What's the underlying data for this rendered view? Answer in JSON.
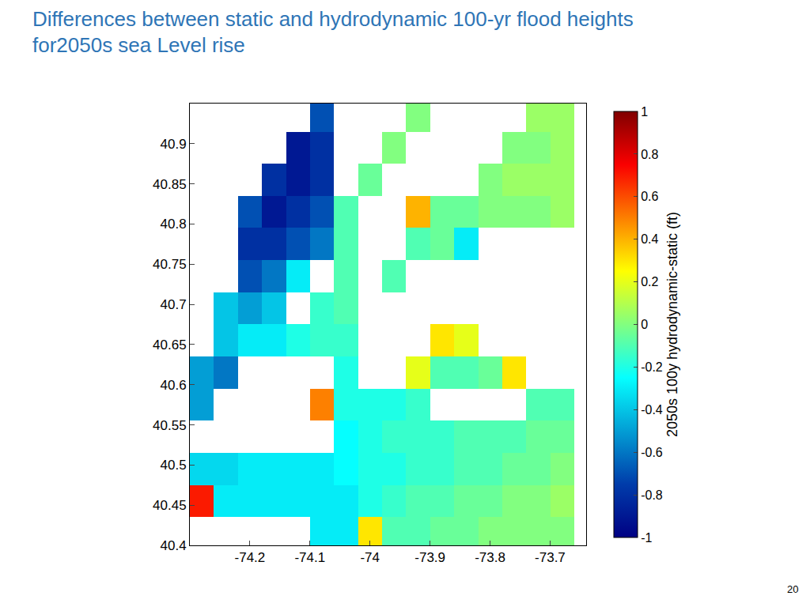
{
  "chart_data": {
    "type": "heatmap",
    "title": [
      "Differences between static and hydrodynamic 100-yr flood heights",
      "for2050s sea Level rise"
    ],
    "page": "20",
    "color": "Jet",
    "x": [
      -74.28,
      -74.24,
      -74.2,
      -74.16,
      -74.12,
      -74.08,
      -74.04,
      -74.0,
      -73.96,
      -73.92,
      -73.88,
      -73.84,
      -73.8,
      -73.76,
      -73.72,
      -73.68
    ],
    "y": [
      40.415,
      40.455,
      40.495,
      40.535,
      40.575,
      40.615,
      40.655,
      40.695,
      40.735,
      40.775,
      40.815,
      40.855,
      40.895,
      40.935
    ],
    "z": [
      [
        null,
        null,
        null,
        null,
        null,
        -0.3,
        -0.3,
        0.3,
        -0.1,
        -0.1,
        -0.05,
        -0.05,
        0,
        0,
        0,
        0
      ],
      [
        0.7,
        -0.3,
        -0.3,
        -0.3,
        -0.3,
        -0.3,
        -0.3,
        -0.2,
        -0.15,
        -0.1,
        -0.1,
        -0.05,
        -0.05,
        0,
        0,
        0.05
      ],
      [
        -0.35,
        -0.35,
        -0.3,
        -0.3,
        -0.3,
        -0.3,
        -0.25,
        -0.2,
        -0.2,
        -0.15,
        -0.15,
        -0.1,
        -0.1,
        -0.05,
        -0.05,
        0
      ],
      [
        null,
        null,
        null,
        null,
        null,
        null,
        -0.25,
        -0.2,
        -0.15,
        -0.15,
        -0.15,
        -0.1,
        -0.1,
        -0.1,
        -0.05,
        -0.05
      ],
      [
        -0.5,
        null,
        null,
        null,
        null,
        0.5,
        -0.2,
        -0.2,
        -0.2,
        -0.15,
        null,
        null,
        null,
        null,
        -0.1,
        -0.1
      ],
      [
        -0.5,
        -0.6,
        null,
        null,
        null,
        null,
        -0.2,
        null,
        null,
        0.2,
        -0.1,
        -0.1,
        -0.05,
        0.3,
        null,
        null
      ],
      [
        null,
        -0.4,
        -0.3,
        -0.3,
        -0.2,
        -0.15,
        -0.15,
        null,
        null,
        null,
        0.3,
        0.2,
        null,
        null,
        null,
        null
      ],
      [
        null,
        -0.4,
        -0.5,
        -0.4,
        null,
        -0.15,
        -0.1,
        null,
        null,
        null,
        null,
        null,
        null,
        null,
        null,
        null
      ],
      [
        null,
        null,
        -0.7,
        -0.6,
        -0.3,
        null,
        -0.1,
        null,
        -0.1,
        null,
        null,
        null,
        null,
        null,
        null,
        null
      ],
      [
        null,
        null,
        -0.8,
        -0.8,
        -0.7,
        -0.6,
        -0.1,
        null,
        null,
        -0.1,
        -0.05,
        -0.3,
        null,
        null,
        null,
        null
      ],
      [
        null,
        null,
        -0.7,
        -0.9,
        -0.8,
        -0.7,
        -0.1,
        null,
        null,
        0.4,
        -0.05,
        -0.05,
        0,
        0,
        0,
        0.05
      ],
      [
        null,
        null,
        null,
        -0.8,
        -0.9,
        -0.8,
        null,
        -0.05,
        null,
        null,
        null,
        null,
        0,
        0.05,
        0.05,
        0.05
      ],
      [
        null,
        null,
        null,
        null,
        -0.9,
        -0.8,
        null,
        null,
        0,
        null,
        null,
        null,
        null,
        0,
        0,
        0.05
      ],
      [
        null,
        null,
        null,
        null,
        null,
        -0.7,
        null,
        null,
        null,
        0,
        null,
        null,
        null,
        null,
        0.05,
        0.05
      ]
    ],
    "xlim": [
      -74.3,
      -73.64
    ],
    "ylim": [
      40.4,
      40.95
    ],
    "xticks": [
      -74.2,
      -74.1,
      -74,
      -73.9,
      -73.8,
      -73.7
    ],
    "yticks": [
      40.4,
      40.45,
      40.5,
      40.55,
      40.6,
      40.65,
      40.7,
      40.75,
      40.8,
      40.85,
      40.9
    ],
    "colorbar": {
      "label": "2050s 100y hydrodynamic-static (ft)",
      "range": [
        -1,
        1
      ],
      "ticks": [
        -1,
        -0.8,
        -0.6,
        -0.4,
        -0.2,
        0,
        0.2,
        0.4,
        0.6,
        0.8,
        1
      ]
    },
    "grid": false
  }
}
